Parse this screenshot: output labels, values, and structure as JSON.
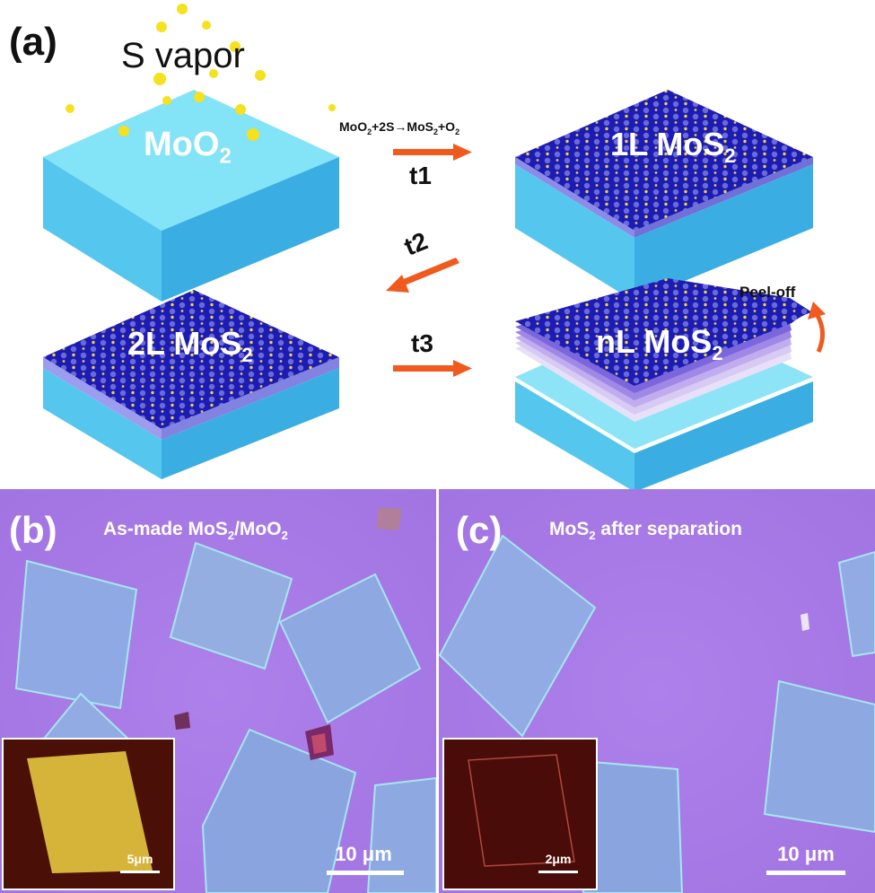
{
  "schematic": {
    "panel_label": "(a)",
    "vapor_label": "S vapor",
    "reaction": {
      "prefix": "MoO",
      "sub1": "2",
      "middle": "+2S→MoS",
      "sub2": "2",
      "mid2": "+O",
      "sub3": "2"
    },
    "blocks": [
      {
        "text": "MoO",
        "sub": "2"
      },
      {
        "text": "1L MoS",
        "sub": "2"
      },
      {
        "text": "2L MoS",
        "sub": "2"
      },
      {
        "text": "nL MoS",
        "sub": "2"
      }
    ],
    "steps": [
      "t1",
      "t2",
      "t3"
    ],
    "peel_label": "Peel-off"
  },
  "micrograph_b": {
    "panel_label": "(b)",
    "title": {
      "a": "As-made MoS",
      "s1": "2",
      "b": "/MoO",
      "s2": "2"
    },
    "scale_bar": "10 μm",
    "inset_scale": "5μm"
  },
  "micrograph_c": {
    "panel_label": "(c)",
    "title": {
      "a": "MoS",
      "s1": "2",
      "b": " after separation"
    },
    "scale_bar": "10 μm",
    "inset_scale": "2μm"
  },
  "colors": {
    "substrate_top": "#80e1f5",
    "substrate_side": "#43b4e6",
    "mos2": "#1e1eb8",
    "arrow": "#f05a1e",
    "sulfur": "#f5e11e",
    "micro_bg": "#a878e6"
  }
}
